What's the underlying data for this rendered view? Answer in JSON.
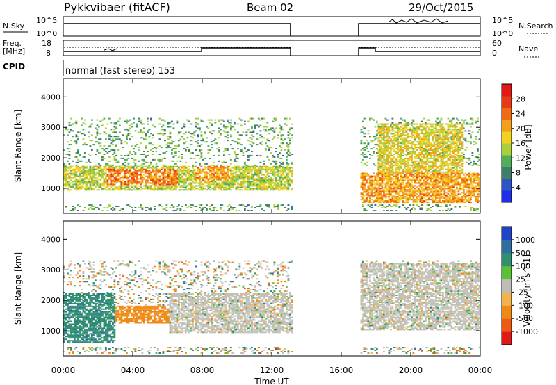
{
  "header": {
    "title": "Pykkvibaer (fitACF)",
    "beam": "Beam 02",
    "date": "29/Oct/2015"
  },
  "panels": {
    "nsky": {
      "left_label": "N.Sky",
      "right_label": "N.Search",
      "left_ticks": [
        "10^5",
        "10^0"
      ],
      "right_ticks": [
        "10^5",
        "10^0"
      ]
    },
    "freq": {
      "left_label_1": "Freq.",
      "left_label_2": "[MHz]",
      "right_label": "Nave",
      "left_ticks": [
        "18",
        "8"
      ],
      "right_ticks": [
        "60",
        "0"
      ]
    },
    "cpid": {
      "label": "CPID",
      "value": "normal (fast stereo) 153"
    }
  },
  "chart_data": [
    {
      "type": "heatmap",
      "name": "power",
      "ylabel": "Slant Range [km]",
      "ylim": [
        180,
        4600
      ],
      "yticks": [
        1000,
        2000,
        3000,
        4000
      ],
      "xlim": [
        0,
        24
      ],
      "colorbar": {
        "label": "Power [dB]",
        "ticks": [
          4,
          8,
          12,
          16,
          20,
          24,
          28
        ],
        "colors": [
          "#1f2ee8",
          "#2f55c4",
          "#3f7f6a",
          "#4fae5a",
          "#a9d03a",
          "#f2d21e",
          "#f3a01c",
          "#f06b14",
          "#e83a16",
          "#e01818"
        ],
        "range": [
          0,
          32
        ]
      },
      "data_gaps_hours": [
        [
          13.1,
          17.0
        ]
      ],
      "echo_bands": [
        {
          "t": [
            0.0,
            13.1
          ],
          "range_km": [
            900,
            1700
          ],
          "value_db": 18
        },
        {
          "t": [
            2.5,
            6.5
          ],
          "range_km": [
            1100,
            1600
          ],
          "value_db": 26
        },
        {
          "t": [
            7.5,
            9.5
          ],
          "range_km": [
            1200,
            1700
          ],
          "value_db": 24
        },
        {
          "t": [
            17.0,
            24.0
          ],
          "range_km": [
            500,
            1500
          ],
          "value_db": 24
        },
        {
          "t": [
            18.0,
            23.0
          ],
          "range_km": [
            1400,
            3100
          ],
          "value_db": 20
        }
      ]
    },
    {
      "type": "heatmap",
      "name": "velocity",
      "ylabel": "Slant Range [km]",
      "ylim": [
        180,
        4600
      ],
      "yticks": [
        1000,
        2000,
        3000,
        4000
      ],
      "xlim": [
        0,
        24
      ],
      "xlabel": "Time UT",
      "xticks": [
        "00:00",
        "04:00",
        "08:00",
        "12:00",
        "16:00",
        "20:00",
        "00:00"
      ],
      "colorbar": {
        "label": "Velocity [m s^-1]",
        "ticks": [
          1000,
          500,
          100,
          25,
          -25,
          -100,
          -500,
          -1000
        ],
        "colors": [
          "#1f44c8",
          "#2f6f9f",
          "#2f8f6f",
          "#5cbf3a",
          "#bdbdb5",
          "#f3b24a",
          "#f08a16",
          "#ee5a14",
          "#e01818"
        ],
        "ground_scatter_color": "#c2c2bb"
      },
      "data_gaps_hours": [
        [
          13.1,
          17.0
        ]
      ],
      "echo_bands": [
        {
          "t": [
            3.0,
            7.5
          ],
          "range_km": [
            1200,
            1800
          ],
          "velocity_ms": -300
        },
        {
          "t": [
            6.0,
            13.1
          ],
          "range_km": [
            900,
            2200
          ],
          "velocity_ms": 0
        },
        {
          "t": [
            17.0,
            24.0
          ],
          "range_km": [
            1000,
            3200
          ],
          "velocity_ms": 0
        },
        {
          "t": [
            0.0,
            3.0
          ],
          "range_km": [
            600,
            2200
          ],
          "velocity_ms": 400
        }
      ]
    }
  ]
}
